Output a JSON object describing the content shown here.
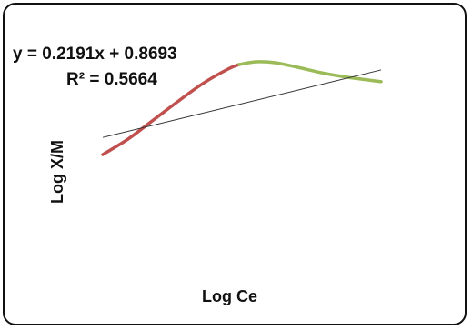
{
  "chart_data": {
    "type": "line",
    "title": "",
    "xlabel": "Log Ce",
    "ylabel": "Log X/M",
    "grid": false,
    "axes_visible": false,
    "annotations": {
      "equation": "y = 0.2191x + 0.8693",
      "r_squared": "R² = 0.5664"
    },
    "series": [
      {
        "kind": "curve-rising",
        "color": "#c0504d",
        "x": [
          0.0,
          0.09,
          0.18,
          0.27,
          0.36,
          0.45,
          0.49
        ],
        "y": [
          0.0,
          0.17,
          0.38,
          0.59,
          0.79,
          0.95,
          1.0
        ]
      },
      {
        "kind": "curve-falling",
        "color": "#9bbb59",
        "x": [
          0.49,
          0.55,
          0.62,
          0.7,
          0.8,
          0.9,
          1.0
        ],
        "y": [
          1.0,
          1.03,
          1.02,
          0.97,
          0.9,
          0.85,
          0.81
        ]
      },
      {
        "kind": "trendline",
        "color": "#333333",
        "x": [
          0.0,
          1.0
        ],
        "y": [
          0.19,
          0.94
        ]
      }
    ]
  }
}
